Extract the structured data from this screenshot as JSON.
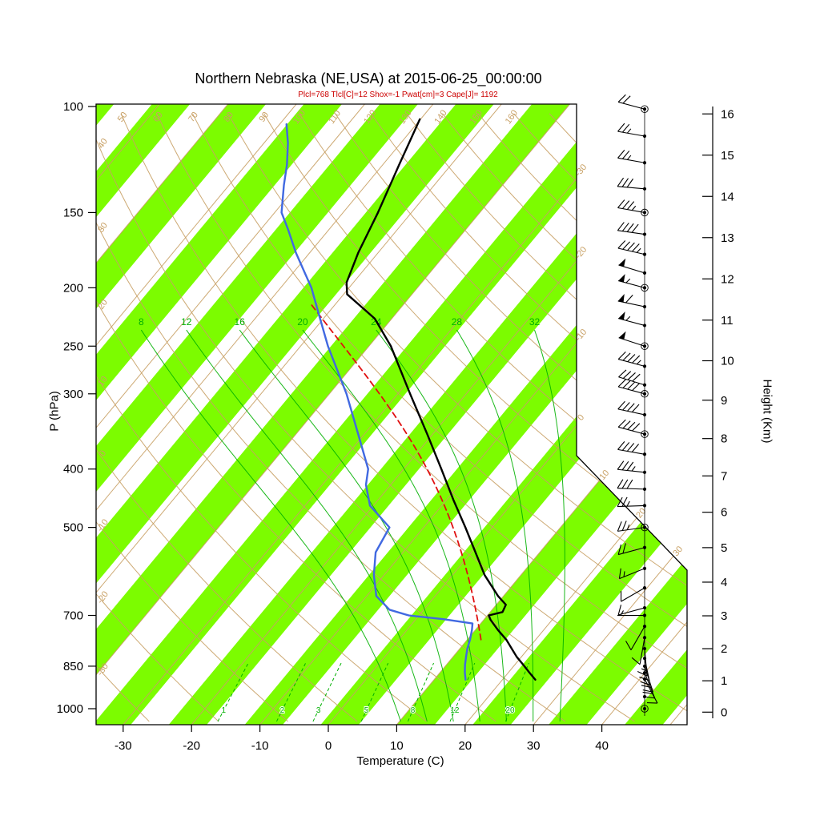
{
  "chart_data": {
    "type": "line",
    "chart_kind": "skew-t log-p atmospheric sounding",
    "title": "Northern Nebraska (NE,USA) at 2015-06-25_00:00:00",
    "subtitle": "Plcl=768 Tlcl[C]=12 Shox=-1 Pwat[cm]=3 Cape[J]= 1192",
    "xlabel": "Temperature (C)",
    "ylabel": "P (hPa)",
    "y2label": "Height (Km)",
    "x_ticks_c": [
      -30,
      -20,
      -10,
      0,
      10,
      20,
      30,
      40
    ],
    "pressure_ticks_hpa": [
      100,
      150,
      200,
      250,
      300,
      400,
      500,
      700,
      850,
      1000
    ],
    "height_ticks_km": [
      0,
      1,
      2,
      3,
      4,
      5,
      6,
      7,
      8,
      9,
      10,
      11,
      12,
      13,
      14,
      15,
      16
    ],
    "pressure_range_hpa": [
      100,
      1050
    ],
    "isotherm_labels_c": [
      -30,
      -20,
      -10,
      0,
      10,
      20,
      30
    ],
    "dry_adiabat_labels_top_c": [
      50,
      60,
      70,
      80,
      90,
      100,
      110,
      120,
      130,
      140,
      150,
      160
    ],
    "dry_adiabat_labels_left_c": [
      -30,
      -20,
      -10,
      0,
      10,
      20,
      30,
      40
    ],
    "moist_adiabat_labels_c": [
      8,
      12,
      16,
      20,
      24,
      28,
      32
    ],
    "mixing_ratio_labels_gkg": [
      1,
      2,
      3,
      5,
      8,
      12,
      20
    ],
    "series": [
      {
        "name": "temperature",
        "color": "#000000",
        "style": "solid",
        "points_p_t": [
          [
            895,
            24.8
          ],
          [
            870,
            23.0
          ],
          [
            845,
            21.2
          ],
          [
            820,
            19.3
          ],
          [
            795,
            17.6
          ],
          [
            768,
            15.7
          ],
          [
            740,
            13.3
          ],
          [
            712,
            11.0
          ],
          [
            700,
            10.2
          ],
          [
            691,
            11.8
          ],
          [
            672,
            11.4
          ],
          [
            650,
            9.2
          ],
          [
            600,
            4.7
          ],
          [
            550,
            0.6
          ],
          [
            500,
            -3.9
          ],
          [
            450,
            -9.0
          ],
          [
            400,
            -14.5
          ],
          [
            350,
            -20.8
          ],
          [
            300,
            -28.2
          ],
          [
            250,
            -36.8
          ],
          [
            225,
            -42.5
          ],
          [
            205,
            -49.5
          ],
          [
            196,
            -51.0
          ],
          [
            175,
            -52.9
          ],
          [
            150,
            -54.9
          ],
          [
            125,
            -57.6
          ],
          [
            105,
            -60.1
          ]
        ]
      },
      {
        "name": "dewpoint",
        "color": "#4169e1",
        "style": "solid",
        "points_p_t": [
          [
            895,
            14.6
          ],
          [
            870,
            13.6
          ],
          [
            845,
            12.7
          ],
          [
            820,
            11.9
          ],
          [
            795,
            11.1
          ],
          [
            768,
            10.4
          ],
          [
            740,
            9.5
          ],
          [
            722,
            8.8
          ],
          [
            710,
            4.0
          ],
          [
            700,
            -1.5
          ],
          [
            685,
            -5.0
          ],
          [
            650,
            -8.6
          ],
          [
            600,
            -11.5
          ],
          [
            550,
            -14.0
          ],
          [
            500,
            -15.0
          ],
          [
            460,
            -20.5
          ],
          [
            425,
            -23.6
          ],
          [
            400,
            -25.2
          ],
          [
            350,
            -30.9
          ],
          [
            300,
            -37.5
          ],
          [
            250,
            -46.0
          ],
          [
            225,
            -50.5
          ],
          [
            200,
            -55.5
          ],
          [
            190,
            -58.0
          ],
          [
            175,
            -62.0
          ],
          [
            160,
            -66.0
          ],
          [
            150,
            -69.0
          ],
          [
            135,
            -72.0
          ],
          [
            125,
            -74.0
          ],
          [
            115,
            -76.5
          ],
          [
            107,
            -79.0
          ]
        ]
      },
      {
        "name": "parcel",
        "color": "#e01010",
        "style": "dashed",
        "lcl_p_hpa": 768,
        "lcl_t_c": 12,
        "top_p_hpa": 212
      }
    ],
    "wind_barbs_right_kt": [
      {
        "p": 101,
        "dir": 285,
        "kt": 20,
        "ring": true
      },
      {
        "p": 112,
        "dir": 280,
        "kt": 25
      },
      {
        "p": 124,
        "dir": 280,
        "kt": 25
      },
      {
        "p": 137,
        "dir": 275,
        "kt": 30
      },
      {
        "p": 150,
        "dir": 280,
        "kt": 35,
        "ring": true
      },
      {
        "p": 163,
        "dir": 278,
        "kt": 40
      },
      {
        "p": 176,
        "dir": 283,
        "kt": 45
      },
      {
        "p": 189,
        "dir": 287,
        "kt": 50
      },
      {
        "p": 200,
        "dir": 285,
        "kt": 55,
        "ring": true
      },
      {
        "p": 215,
        "dir": 282,
        "kt": 60
      },
      {
        "p": 231,
        "dir": 285,
        "kt": 55
      },
      {
        "p": 250,
        "dir": 288,
        "kt": 50,
        "ring": true
      },
      {
        "p": 270,
        "dir": 285,
        "kt": 45
      },
      {
        "p": 290,
        "dir": 287,
        "kt": 40
      },
      {
        "p": 300,
        "dir": 285,
        "kt": 40,
        "ring": true
      },
      {
        "p": 325,
        "dir": 282,
        "kt": 38
      },
      {
        "p": 350,
        "dir": 285,
        "kt": 42,
        "ring": true
      },
      {
        "p": 378,
        "dir": 280,
        "kt": 38
      },
      {
        "p": 405,
        "dir": 276,
        "kt": 33
      },
      {
        "p": 432,
        "dir": 272,
        "kt": 30
      },
      {
        "p": 460,
        "dir": 268,
        "kt": 27
      },
      {
        "p": 500,
        "dir": 262,
        "kt": 25,
        "ring": true
      },
      {
        "p": 540,
        "dir": 255,
        "kt": 20
      },
      {
        "p": 585,
        "dir": 248,
        "kt": 15
      },
      {
        "p": 630,
        "dir": 240,
        "kt": 12
      },
      {
        "p": 680,
        "dir": 255,
        "kt": 8
      },
      {
        "p": 700,
        "dir": 270,
        "kt": 5
      },
      {
        "p": 730,
        "dir": 210,
        "kt": 8
      },
      {
        "p": 762,
        "dir": 190,
        "kt": 12
      },
      {
        "p": 795,
        "dir": 175,
        "kt": 15
      },
      {
        "p": 825,
        "dir": 168,
        "kt": 18
      },
      {
        "p": 850,
        "dir": 162,
        "kt": 22
      },
      {
        "p": 872,
        "dir": 158,
        "kt": 18
      },
      {
        "p": 893,
        "dir": 152,
        "kt": 12
      },
      {
        "p": 955,
        "calm": true
      },
      {
        "p": 1000,
        "calm": true,
        "ring": true
      }
    ],
    "colors": {
      "band_green": "#7cfc00",
      "line_tan": "#c8a064",
      "moist_green": "#00b000",
      "parcel_red": "#e01010",
      "dewpoint_blue": "#4169e1",
      "subtitle_red": "#cc0000"
    }
  }
}
